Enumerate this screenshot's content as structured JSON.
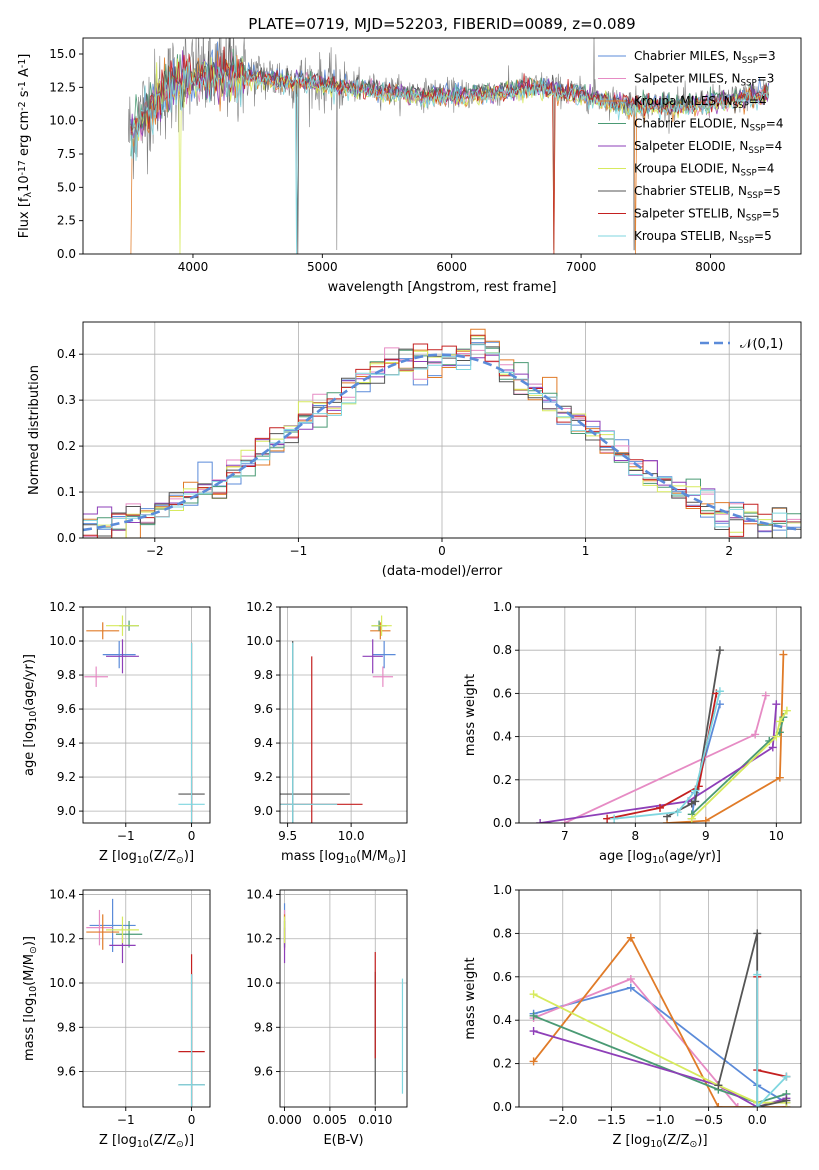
{
  "figure_title": "PLATE=0719, MJD=52203, FIBERID=0089, z=0.089",
  "colors": {
    "Chabrier MILES": "#5b8bd9",
    "Salpeter MILES": "#e68bc4",
    "Kroupa MILES": "#e07b28",
    "Chabrier ELODIE": "#4a9a74",
    "Salpeter ELODIE": "#8e3fb8",
    "Kroupa ELODIE": "#d7ea5e",
    "Chabrier STELIB": "#555555",
    "Salpeter STELIB": "#c42020",
    "Kroupa STELIB": "#7fd6df",
    "data": "#7f7f7f",
    "gaussian": "#5b8bd9"
  },
  "chart_data": [
    {
      "type": "line",
      "id": "spectrum",
      "title": "PLATE=0719, MJD=52203, FIBERID=0089, z=0.089",
      "xlabel": "wavelength [Angstrom, rest frame]",
      "ylabel": "Flux [f$_\\lambda$10$^{-17}$ erg cm$^{-2}$ s$^{-1}$ A$^{-1}$]",
      "xlim": [
        3150,
        8700
      ],
      "ylim": [
        0,
        16.2
      ],
      "xticks": [
        4000,
        5000,
        6000,
        7000,
        8000
      ],
      "yticks": [
        0.0,
        2.5,
        5.0,
        7.5,
        10.0,
        12.5,
        15.0
      ],
      "legend_position": "top-right",
      "series": [
        {
          "name": "Chabrier MILES, N$_{SSP}$=3"
        },
        {
          "name": "Salpeter MILES, N$_{SSP}$=3"
        },
        {
          "name": "Kroupa MILES, N$_{SSP}$=4"
        },
        {
          "name": "Chabrier ELODIE, N$_{SSP}$=4"
        },
        {
          "name": "Salpeter ELODIE, N$_{SSP}$=4"
        },
        {
          "name": "Kroupa ELODIE, N$_{SSP}$=4"
        },
        {
          "name": "Chabrier STELIB, N$_{SSP}$=5"
        },
        {
          "name": "Salpeter STELIB, N$_{SSP}$=5"
        },
        {
          "name": "Kroupa STELIB, N$_{SSP}$=5"
        }
      ],
      "continuum_anchor_points": {
        "x": [
          3500,
          3650,
          3800,
          3950,
          4100,
          4300,
          4600,
          4900,
          5200,
          5500,
          5800,
          6100,
          6400,
          6700,
          7000,
          7300,
          7600,
          7900,
          8200,
          8450
        ],
        "y": [
          9.0,
          11.0,
          12.5,
          13.3,
          13.5,
          13.6,
          13.2,
          13.0,
          12.6,
          12.3,
          12.0,
          12.0,
          12.3,
          12.6,
          12.0,
          11.4,
          11.2,
          11.3,
          11.7,
          12.2
        ]
      },
      "grid": false
    },
    {
      "type": "histogram",
      "id": "residuals",
      "xlabel": "(data-model)/error",
      "ylabel": "Normed distribution",
      "xlim": [
        -2.5,
        2.5
      ],
      "ylim": [
        0,
        0.47
      ],
      "xticks": [
        -2,
        -1,
        0,
        1,
        2
      ],
      "yticks": [
        0.0,
        0.1,
        0.2,
        0.3,
        0.4
      ],
      "bin_width": 0.1,
      "legend": "$\\mathcal{N}(0,1)$",
      "legend_position": "top-right",
      "grid": true
    },
    {
      "type": "scatter",
      "id": "age-vs-Z",
      "xlabel": "Z [log$_{10}$(Z/Z$_\\odot$)]",
      "ylabel": "age  [log$_{10}$(age/yr)]",
      "xlim": [
        -1.65,
        0.28
      ],
      "ylim": [
        8.93,
        10.2
      ],
      "xticks": [
        -1,
        0
      ],
      "yticks": [
        9.0,
        9.2,
        9.4,
        9.6,
        9.8,
        10.0,
        10.2
      ],
      "grid": true,
      "points": [
        {
          "model": "Chabrier MILES",
          "x": -1.1,
          "y": 9.92,
          "xerr": 0.25,
          "yerr": 0.08
        },
        {
          "model": "Salpeter MILES",
          "x": -1.45,
          "y": 9.79,
          "xerr": 0.18,
          "yerr": 0.06
        },
        {
          "model": "Kroupa MILES",
          "x": -1.35,
          "y": 10.06,
          "xerr": 0.25,
          "yerr": 0.05
        },
        {
          "model": "Chabrier ELODIE",
          "x": -0.95,
          "y": 10.09,
          "xerr": 0.15,
          "yerr": 0.03
        },
        {
          "model": "Salpeter ELODIE",
          "x": -1.05,
          "y": 9.91,
          "xerr": 0.25,
          "yerr": 0.1
        },
        {
          "model": "Kroupa ELODIE",
          "x": -1.05,
          "y": 10.09,
          "xerr": 0.25,
          "yerr": 0.06
        },
        {
          "model": "Chabrier STELIB",
          "x": 0.0,
          "y": 9.1,
          "xerr": 0.2,
          "yerr": 0.1
        },
        {
          "model": "Salpeter STELIB",
          "x": 0.0,
          "y": 9.04,
          "xerr": 0.0,
          "yerr": 0.95
        },
        {
          "model": "Kroupa STELIB",
          "x": 0.0,
          "y": 9.04,
          "xerr": 0.2,
          "yerr": 0.95
        }
      ]
    },
    {
      "type": "scatter",
      "id": "age-vs-mass",
      "xlabel": "mass [log$_{10}$(M/M$_\\odot$)]",
      "ylabel": "",
      "xlim": [
        9.44,
        10.44
      ],
      "ylim": [
        8.93,
        10.2
      ],
      "xticks": [
        9.5,
        10.0
      ],
      "yticks": [
        9.0,
        9.2,
        9.4,
        9.6,
        9.8,
        10.0,
        10.2
      ],
      "grid": true,
      "points": [
        {
          "model": "Chabrier MILES",
          "x": 10.26,
          "y": 9.92,
          "xerr": 0.09,
          "yerr": 0.08
        },
        {
          "model": "Salpeter MILES",
          "x": 10.25,
          "y": 9.79,
          "xerr": 0.08,
          "yerr": 0.06
        },
        {
          "model": "Kroupa MILES",
          "x": 10.23,
          "y": 10.06,
          "xerr": 0.08,
          "yerr": 0.05
        },
        {
          "model": "Chabrier ELODIE",
          "x": 10.22,
          "y": 10.09,
          "xerr": 0.06,
          "yerr": 0.03
        },
        {
          "model": "Salpeter ELODIE",
          "x": 10.17,
          "y": 9.91,
          "xerr": 0.08,
          "yerr": 0.1
        },
        {
          "model": "Kroupa ELODIE",
          "x": 10.24,
          "y": 10.09,
          "xerr": 0.08,
          "yerr": 0.06
        },
        {
          "model": "Chabrier STELIB",
          "x": 9.54,
          "y": 9.1,
          "xerr": 0.45,
          "yerr": 0.9
        },
        {
          "model": "Salpeter STELIB",
          "x": 9.69,
          "y": 9.04,
          "xerr": 0.4,
          "yerr": 0.87
        },
        {
          "model": "Kroupa STELIB",
          "x": 9.54,
          "y": 9.04,
          "xerr": 0.35,
          "yerr": 0.95
        }
      ]
    },
    {
      "type": "line",
      "id": "mass-weight-vs-age",
      "xlabel": "age  [log$_{10}$(age/yr)]",
      "ylabel": "mass weight",
      "xlim": [
        6.35,
        10.35
      ],
      "ylim": [
        0,
        1.0
      ],
      "xticks": [
        7,
        8,
        9,
        10
      ],
      "yticks": [
        0.0,
        0.2,
        0.4,
        0.6,
        0.8,
        1.0
      ],
      "grid": true,
      "series": [
        {
          "model": "Chabrier MILES",
          "x": [
            8.8,
            8.85,
            9.2
          ],
          "y": [
            0.02,
            0.14,
            0.55
          ]
        },
        {
          "model": "Salpeter MILES",
          "x": [
            7.0,
            9.7,
            9.85
          ],
          "y": [
            0.0,
            0.41,
            0.59
          ]
        },
        {
          "model": "Kroupa MILES",
          "x": [
            8.45,
            9.0,
            10.05,
            10.1
          ],
          "y": [
            0.0,
            0.01,
            0.21,
            0.78
          ]
        },
        {
          "model": "Chabrier ELODIE",
          "x": [
            8.8,
            9.9,
            10.05,
            10.1
          ],
          "y": [
            0.04,
            0.38,
            0.42,
            0.49
          ]
        },
        {
          "model": "Salpeter ELODIE",
          "x": [
            6.65,
            8.75,
            9.95,
            10.0
          ],
          "y": [
            0.0,
            0.1,
            0.35,
            0.55
          ]
        },
        {
          "model": "Kroupa ELODIE",
          "x": [
            8.8,
            10.0,
            10.05,
            10.15
          ],
          "y": [
            0.02,
            0.4,
            0.47,
            0.52
          ]
        },
        {
          "model": "Chabrier STELIB",
          "x": [
            8.45,
            8.8,
            8.85,
            9.2
          ],
          "y": [
            0.03,
            0.09,
            0.1,
            0.8
          ]
        },
        {
          "model": "Salpeter STELIB",
          "x": [
            7.6,
            8.35,
            8.9,
            9.15
          ],
          "y": [
            0.02,
            0.07,
            0.17,
            0.6
          ]
        },
        {
          "model": "Kroupa STELIB",
          "x": [
            7.7,
            8.6,
            8.85,
            9.2
          ],
          "y": [
            0.02,
            0.05,
            0.15,
            0.61
          ]
        }
      ]
    },
    {
      "type": "scatter",
      "id": "mass-vs-Z",
      "xlabel": "Z [log$_{10}$(Z/Z$_\\odot$)]",
      "ylabel": "mass [log$_{10}$(M/M$_\\odot$)]",
      "xlim": [
        -1.65,
        0.28
      ],
      "ylim": [
        9.44,
        10.42
      ],
      "xticks": [
        -1,
        0
      ],
      "yticks": [
        9.6,
        9.8,
        10.0,
        10.2,
        10.4
      ],
      "grid": true,
      "points": [
        {
          "model": "Chabrier MILES",
          "x": -1.2,
          "y": 10.26,
          "xerr": 0.35,
          "yerr": 0.12
        },
        {
          "model": "Salpeter MILES",
          "x": -1.4,
          "y": 10.25,
          "xerr": 0.2,
          "yerr": 0.08
        },
        {
          "model": "Kroupa MILES",
          "x": -1.35,
          "y": 10.23,
          "xerr": 0.25,
          "yerr": 0.08
        },
        {
          "model": "Chabrier ELODIE",
          "x": -0.95,
          "y": 10.22,
          "xerr": 0.2,
          "yerr": 0.06
        },
        {
          "model": "Salpeter ELODIE",
          "x": -1.05,
          "y": 10.17,
          "xerr": 0.2,
          "yerr": 0.08
        },
        {
          "model": "Kroupa ELODIE",
          "x": -1.05,
          "y": 10.24,
          "xerr": 0.25,
          "yerr": 0.06
        },
        {
          "model": "Chabrier STELIB",
          "x": 0.0,
          "y": 9.54,
          "xerr": 0.2,
          "yerr": 0.5
        },
        {
          "model": "Salpeter STELIB",
          "x": 0.0,
          "y": 9.69,
          "xerr": 0.2,
          "yerr": 0.44
        },
        {
          "model": "Kroupa STELIB",
          "x": 0.0,
          "y": 9.54,
          "xerr": 0.2,
          "yerr": 0.5
        }
      ]
    },
    {
      "type": "scatter",
      "id": "mass-vs-EBV",
      "xlabel": "E(B-V)",
      "ylabel": "",
      "xlim": [
        -0.0005,
        0.0135
      ],
      "ylim": [
        9.44,
        10.42
      ],
      "xticks": [
        0.0,
        0.005,
        0.01
      ],
      "xticklabels": [
        "0.000",
        "0.005",
        "0.010"
      ],
      "yticks": [
        9.6,
        9.8,
        10.0,
        10.2,
        10.4
      ],
      "grid": true,
      "points": [
        {
          "model": "Chabrier MILES",
          "x": 0.0,
          "y": 10.26,
          "xerr": 0.0,
          "yerr": 0.1
        },
        {
          "model": "Salpeter MILES",
          "x": 0.0,
          "y": 10.25,
          "xerr": 0.0,
          "yerr": 0.08
        },
        {
          "model": "Kroupa MILES",
          "x": 0.0,
          "y": 10.23,
          "xerr": 0.0,
          "yerr": 0.08
        },
        {
          "model": "Chabrier ELODIE",
          "x": 0.0,
          "y": 10.22,
          "xerr": 0.0,
          "yerr": 0.06
        },
        {
          "model": "Salpeter ELODIE",
          "x": 0.0,
          "y": 10.17,
          "xerr": 0.0,
          "yerr": 0.08
        },
        {
          "model": "Kroupa ELODIE",
          "x": 0.0,
          "y": 10.24,
          "xerr": 0.0,
          "yerr": 0.06
        },
        {
          "model": "Chabrier STELIB",
          "x": 0.01,
          "y": 9.75,
          "xerr": 0.0,
          "yerr": 0.3
        },
        {
          "model": "Salpeter STELIB",
          "x": 0.01,
          "y": 9.9,
          "xerr": 0.0,
          "yerr": 0.24
        },
        {
          "model": "Kroupa STELIB",
          "x": 0.013,
          "y": 9.76,
          "xerr": 0.0,
          "yerr": 0.26
        }
      ]
    },
    {
      "type": "line",
      "id": "mass-weight-vs-Z",
      "xlabel": "Z [log$_{10}$(Z/Z$_\\odot$)]",
      "ylabel": "mass weight",
      "xlim": [
        -2.45,
        0.45
      ],
      "ylim": [
        0,
        1.0
      ],
      "xticks": [
        -2.0,
        -1.5,
        -1.0,
        -0.5,
        0.0
      ],
      "yticks": [
        0.0,
        0.2,
        0.4,
        0.6,
        0.8,
        1.0
      ],
      "grid": true,
      "series": [
        {
          "model": "Chabrier MILES",
          "x": [
            -2.3,
            -1.3,
            0.0,
            0.3
          ],
          "y": [
            0.43,
            0.55,
            0.1,
            0.02
          ]
        },
        {
          "model": "Salpeter MILES",
          "x": [
            -2.3,
            -1.3,
            -0.2
          ],
          "y": [
            0.41,
            0.59,
            0.0
          ]
        },
        {
          "model": "Kroupa MILES",
          "x": [
            -2.3,
            -1.3,
            -0.4,
            0.3
          ],
          "y": [
            0.21,
            0.78,
            0.0,
            0.0
          ]
        },
        {
          "model": "Chabrier ELODIE",
          "x": [
            -2.3,
            -0.4,
            0.0,
            0.3
          ],
          "y": [
            0.42,
            0.08,
            0.02,
            0.06
          ]
        },
        {
          "model": "Salpeter ELODIE",
          "x": [
            -2.3,
            -0.4,
            0.0,
            0.3
          ],
          "y": [
            0.35,
            0.1,
            0.0,
            0.04
          ]
        },
        {
          "model": "Kroupa ELODIE",
          "x": [
            -2.3,
            -0.4,
            0.0,
            0.3
          ],
          "y": [
            0.52,
            0.1,
            0.02,
            0.02
          ]
        },
        {
          "model": "Chabrier STELIB",
          "x": [
            -0.4,
            0.0,
            0.0,
            0.3
          ],
          "y": [
            0.1,
            0.8,
            0.0,
            0.03
          ]
        },
        {
          "model": "Salpeter STELIB",
          "x": [
            0.0,
            0.0,
            0.3
          ],
          "y": [
            0.6,
            0.17,
            0.14
          ]
        },
        {
          "model": "Kroupa STELIB",
          "x": [
            0.0,
            0.0,
            0.3
          ],
          "y": [
            0.61,
            0.0,
            0.14
          ]
        }
      ]
    }
  ]
}
